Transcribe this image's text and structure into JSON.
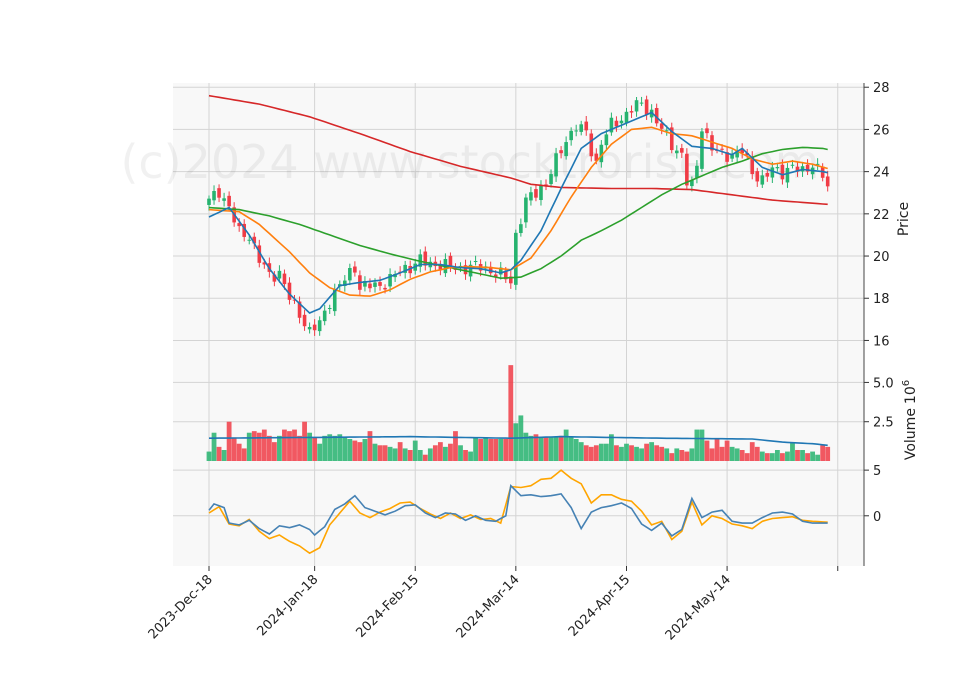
{
  "chart_data": {
    "type": "candlestick",
    "watermark": "(c)2024 www.stocktrorise.com",
    "x_tick_labels": [
      "2023-Dec-18",
      "2024-Jan-18",
      "2024-Feb-15",
      "2024-Mar-14",
      "2024-Apr-15",
      "2024-May-14"
    ],
    "x_tick_indices": [
      0,
      21,
      41,
      61,
      83,
      103
    ],
    "n_candles": 124,
    "price_panel": {
      "ylabel": "Price",
      "ylim": [
        15.5,
        28.2
      ],
      "yticks": [
        16,
        18,
        20,
        22,
        24,
        26,
        28
      ],
      "ytick_labels": [
        "16",
        "18",
        "20",
        "22",
        "24",
        "26",
        "28"
      ],
      "close_anchors": [
        [
          0,
          22.6
        ],
        [
          2,
          23.1
        ],
        [
          4,
          22.3
        ],
        [
          6,
          21.1
        ],
        [
          8,
          21.0
        ],
        [
          10,
          19.8
        ],
        [
          12,
          19.1
        ],
        [
          14,
          19.2
        ],
        [
          16,
          18.0
        ],
        [
          18,
          17.3
        ],
        [
          20,
          16.4
        ],
        [
          22,
          16.8
        ],
        [
          24,
          17.9
        ],
        [
          26,
          18.6
        ],
        [
          28,
          19.2
        ],
        [
          29,
          19.5
        ],
        [
          30,
          18.5
        ],
        [
          32,
          18.6
        ],
        [
          34,
          18.6
        ],
        [
          36,
          18.9
        ],
        [
          38,
          19.3
        ],
        [
          40,
          19.5
        ],
        [
          42,
          19.8
        ],
        [
          44,
          19.6
        ],
        [
          46,
          19.6
        ],
        [
          48,
          19.5
        ],
        [
          50,
          19.4
        ],
        [
          52,
          19.5
        ],
        [
          54,
          19.5
        ],
        [
          56,
          19.3
        ],
        [
          58,
          19.1
        ],
        [
          60,
          18.8
        ],
        [
          61,
          21.0
        ],
        [
          63,
          22.6
        ],
        [
          65,
          23.0
        ],
        [
          67,
          23.5
        ],
        [
          69,
          24.5
        ],
        [
          71,
          25.5
        ],
        [
          73,
          26.2
        ],
        [
          75,
          25.8
        ],
        [
          76,
          25.0
        ],
        [
          77,
          24.4
        ],
        [
          78,
          25.4
        ],
        [
          80,
          26.2
        ],
        [
          82,
          26.5
        ],
        [
          84,
          27.0
        ],
        [
          86,
          27.2
        ],
        [
          88,
          26.8
        ],
        [
          90,
          26.0
        ],
        [
          92,
          25.3
        ],
        [
          94,
          24.8
        ],
        [
          95,
          23.5
        ],
        [
          96,
          23.3
        ],
        [
          97,
          24.3
        ],
        [
          98,
          26.2
        ],
        [
          100,
          25.1
        ],
        [
          102,
          24.8
        ],
        [
          104,
          24.8
        ],
        [
          106,
          25.0
        ],
        [
          108,
          24.0
        ],
        [
          110,
          23.6
        ],
        [
          112,
          24.1
        ],
        [
          114,
          24.0
        ],
        [
          116,
          24.2
        ],
        [
          118,
          24.0
        ],
        [
          120,
          24.4
        ],
        [
          122,
          23.8
        ],
        [
          123,
          23.2
        ]
      ],
      "ma_short_anchors": [
        [
          0,
          21.85
        ],
        [
          4,
          22.3
        ],
        [
          8,
          21.0
        ],
        [
          12,
          19.4
        ],
        [
          16,
          18.2
        ],
        [
          20,
          17.3
        ],
        [
          22,
          17.5
        ],
        [
          26,
          18.6
        ],
        [
          30,
          18.75
        ],
        [
          34,
          18.85
        ],
        [
          38,
          19.2
        ],
        [
          42,
          19.6
        ],
        [
          46,
          19.6
        ],
        [
          50,
          19.45
        ],
        [
          54,
          19.4
        ],
        [
          58,
          19.2
        ],
        [
          60,
          19.35
        ],
        [
          62,
          19.8
        ],
        [
          66,
          21.2
        ],
        [
          70,
          23.2
        ],
        [
          74,
          25.1
        ],
        [
          78,
          25.8
        ],
        [
          82,
          26.2
        ],
        [
          86,
          26.6
        ],
        [
          88,
          26.8
        ],
        [
          92,
          25.9
        ],
        [
          96,
          25.2
        ],
        [
          100,
          25.1
        ],
        [
          104,
          24.8
        ],
        [
          106,
          25.1
        ],
        [
          110,
          24.2
        ],
        [
          114,
          23.85
        ],
        [
          118,
          24.1
        ],
        [
          122,
          24.0
        ],
        [
          123,
          23.95
        ]
      ],
      "ma_mid_anchors": [
        [
          0,
          22.2
        ],
        [
          6,
          22.1
        ],
        [
          10,
          21.5
        ],
        [
          16,
          20.2
        ],
        [
          20,
          19.2
        ],
        [
          24,
          18.5
        ],
        [
          28,
          18.15
        ],
        [
          32,
          18.1
        ],
        [
          36,
          18.4
        ],
        [
          40,
          18.9
        ],
        [
          44,
          19.25
        ],
        [
          48,
          19.45
        ],
        [
          52,
          19.5
        ],
        [
          56,
          19.45
        ],
        [
          60,
          19.35
        ],
        [
          64,
          19.9
        ],
        [
          68,
          21.2
        ],
        [
          72,
          22.8
        ],
        [
          76,
          24.2
        ],
        [
          80,
          25.3
        ],
        [
          84,
          26.0
        ],
        [
          88,
          26.1
        ],
        [
          92,
          25.8
        ],
        [
          96,
          25.7
        ],
        [
          100,
          25.4
        ],
        [
          104,
          25.1
        ],
        [
          108,
          24.6
        ],
        [
          112,
          24.35
        ],
        [
          116,
          24.5
        ],
        [
          120,
          24.35
        ],
        [
          123,
          24.15
        ]
      ],
      "ma_long_anchors": [
        [
          0,
          22.3
        ],
        [
          6,
          22.2
        ],
        [
          12,
          21.9
        ],
        [
          18,
          21.5
        ],
        [
          24,
          21.0
        ],
        [
          30,
          20.5
        ],
        [
          36,
          20.1
        ],
        [
          42,
          19.75
        ],
        [
          48,
          19.45
        ],
        [
          54,
          19.15
        ],
        [
          58,
          18.95
        ],
        [
          62,
          19.0
        ],
        [
          66,
          19.4
        ],
        [
          70,
          20.0
        ],
        [
          74,
          20.75
        ],
        [
          78,
          21.2
        ],
        [
          82,
          21.7
        ],
        [
          86,
          22.3
        ],
        [
          90,
          22.9
        ],
        [
          94,
          23.4
        ],
        [
          98,
          23.8
        ],
        [
          102,
          24.2
        ],
        [
          106,
          24.5
        ],
        [
          110,
          24.85
        ],
        [
          114,
          25.05
        ],
        [
          118,
          25.15
        ],
        [
          122,
          25.1
        ],
        [
          123,
          25.05
        ]
      ],
      "ma_200_anchors": [
        [
          0,
          27.6
        ],
        [
          10,
          27.2
        ],
        [
          20,
          26.6
        ],
        [
          30,
          25.8
        ],
        [
          40,
          24.95
        ],
        [
          50,
          24.25
        ],
        [
          60,
          23.7
        ],
        [
          64,
          23.4
        ],
        [
          70,
          23.25
        ],
        [
          80,
          23.2
        ],
        [
          88,
          23.2
        ],
        [
          96,
          23.15
        ],
        [
          104,
          22.9
        ],
        [
          112,
          22.65
        ],
        [
          123,
          22.45
        ]
      ]
    },
    "volume_panel": {
      "ylabel": "Volume  10^6",
      "ylabel_text": "Volume",
      "ylabel_exp": "6",
      "ylim": [
        0,
        7.0
      ],
      "yticks": [
        2.5,
        5.0
      ],
      "ytick_labels": [
        "2.5",
        "5.0"
      ],
      "values": [
        0.6,
        1.8,
        0.9,
        0.7,
        2.5,
        1.5,
        1.1,
        0.8,
        1.8,
        1.9,
        1.8,
        2.0,
        1.6,
        1.2,
        1.6,
        2.0,
        1.9,
        2.0,
        1.6,
        2.5,
        1.8,
        1.5,
        1.1,
        1.6,
        1.7,
        1.6,
        1.7,
        1.5,
        1.4,
        1.3,
        1.2,
        1.4,
        1.9,
        1.1,
        1.0,
        1.0,
        0.9,
        0.8,
        1.2,
        0.8,
        0.7,
        1.3,
        0.7,
        0.4,
        0.8,
        1.0,
        1.2,
        0.9,
        1.1,
        1.9,
        1.0,
        0.7,
        0.6,
        1.5,
        1.4,
        1.5,
        1.4,
        1.4,
        1.4,
        1.4,
        6.1,
        2.4,
        2.9,
        1.8,
        1.6,
        1.7,
        1.5,
        1.5,
        1.5,
        1.5,
        1.6,
        2.0,
        1.5,
        1.4,
        1.2,
        1.0,
        0.9,
        1.0,
        1.1,
        1.1,
        1.7,
        1.0,
        0.9,
        1.1,
        1.0,
        0.9,
        0.8,
        1.1,
        1.2,
        1.0,
        0.9,
        0.8,
        0.5,
        0.8,
        0.7,
        0.6,
        0.8,
        2.0,
        2.0,
        1.3,
        0.8,
        1.4,
        0.9,
        1.3,
        0.9,
        0.8,
        0.7,
        0.5,
        1.2,
        0.9,
        0.6,
        0.5,
        0.5,
        0.7,
        0.5,
        0.6,
        1.2,
        0.7,
        0.7,
        0.5,
        0.6,
        0.4,
        1.0,
        0.9
      ],
      "avg_anchors": [
        [
          0,
          1.45
        ],
        [
          20,
          1.5
        ],
        [
          40,
          1.55
        ],
        [
          60,
          1.45
        ],
        [
          70,
          1.55
        ],
        [
          90,
          1.45
        ],
        [
          108,
          1.4
        ],
        [
          114,
          1.2
        ],
        [
          120,
          1.1
        ],
        [
          123,
          1.0
        ]
      ]
    },
    "oscillator_panel": {
      "ylim": [
        -5.5,
        6.0
      ],
      "yticks": [
        0,
        5
      ],
      "ytick_labels": [
        "0",
        "5"
      ],
      "line1_anchors": [
        [
          0,
          0.6
        ],
        [
          1,
          1.3
        ],
        [
          3,
          0.9
        ],
        [
          4,
          -0.8
        ],
        [
          6,
          -1.0
        ],
        [
          8,
          -0.5
        ],
        [
          10,
          -1.4
        ],
        [
          12,
          -2.0
        ],
        [
          14,
          -1.1
        ],
        [
          16,
          -1.3
        ],
        [
          18,
          -1.0
        ],
        [
          20,
          -1.5
        ],
        [
          21,
          -2.1
        ],
        [
          23,
          -1.2
        ],
        [
          25,
          0.7
        ],
        [
          27,
          1.3
        ],
        [
          29,
          2.2
        ],
        [
          31,
          0.9
        ],
        [
          33,
          0.5
        ],
        [
          35,
          0.1
        ],
        [
          37,
          0.5
        ],
        [
          39,
          1.1
        ],
        [
          41,
          1.2
        ],
        [
          43,
          0.3
        ],
        [
          45,
          -0.2
        ],
        [
          47,
          0.3
        ],
        [
          49,
          0.2
        ],
        [
          51,
          -0.5
        ],
        [
          53,
          0.0
        ],
        [
          55,
          -0.5
        ],
        [
          57,
          -0.6
        ],
        [
          59,
          0.0
        ],
        [
          60,
          3.3
        ],
        [
          62,
          2.2
        ],
        [
          64,
          2.3
        ],
        [
          66,
          2.1
        ],
        [
          68,
          2.2
        ],
        [
          70,
          2.4
        ],
        [
          72,
          0.9
        ],
        [
          74,
          -1.4
        ],
        [
          76,
          0.4
        ],
        [
          78,
          0.9
        ],
        [
          80,
          1.1
        ],
        [
          82,
          1.4
        ],
        [
          84,
          0.8
        ],
        [
          86,
          -0.9
        ],
        [
          88,
          -1.6
        ],
        [
          90,
          -0.8
        ],
        [
          92,
          -2.2
        ],
        [
          94,
          -1.5
        ],
        [
          96,
          1.9
        ],
        [
          98,
          -0.2
        ],
        [
          100,
          0.4
        ],
        [
          102,
          0.6
        ],
        [
          104,
          -0.6
        ],
        [
          106,
          -0.8
        ],
        [
          108,
          -0.8
        ],
        [
          110,
          -0.2
        ],
        [
          112,
          0.3
        ],
        [
          114,
          0.4
        ],
        [
          116,
          0.2
        ],
        [
          118,
          -0.6
        ],
        [
          120,
          -0.8
        ],
        [
          123,
          -0.8
        ]
      ],
      "line2_anchors": [
        [
          0,
          0.3
        ],
        [
          2,
          1.0
        ],
        [
          4,
          -0.9
        ],
        [
          6,
          -1.1
        ],
        [
          8,
          -0.4
        ],
        [
          10,
          -1.7
        ],
        [
          12,
          -2.5
        ],
        [
          14,
          -2.1
        ],
        [
          16,
          -2.8
        ],
        [
          18,
          -3.3
        ],
        [
          20,
          -4.1
        ],
        [
          22,
          -3.5
        ],
        [
          24,
          -1.0
        ],
        [
          26,
          0.3
        ],
        [
          28,
          1.6
        ],
        [
          30,
          0.3
        ],
        [
          32,
          -0.2
        ],
        [
          34,
          0.4
        ],
        [
          36,
          0.8
        ],
        [
          38,
          1.4
        ],
        [
          40,
          1.5
        ],
        [
          42,
          0.8
        ],
        [
          44,
          0.2
        ],
        [
          46,
          -0.3
        ],
        [
          48,
          0.3
        ],
        [
          50,
          -0.3
        ],
        [
          52,
          0.1
        ],
        [
          54,
          -0.4
        ],
        [
          56,
          -0.3
        ],
        [
          58,
          -0.8
        ],
        [
          60,
          3.2
        ],
        [
          62,
          3.1
        ],
        [
          64,
          3.3
        ],
        [
          66,
          4.0
        ],
        [
          68,
          4.1
        ],
        [
          70,
          5.0
        ],
        [
          72,
          4.1
        ],
        [
          74,
          3.5
        ],
        [
          76,
          1.4
        ],
        [
          78,
          2.3
        ],
        [
          80,
          2.3
        ],
        [
          82,
          1.8
        ],
        [
          84,
          1.6
        ],
        [
          86,
          0.5
        ],
        [
          88,
          -1.0
        ],
        [
          90,
          -0.6
        ],
        [
          92,
          -2.6
        ],
        [
          94,
          -1.7
        ],
        [
          96,
          1.5
        ],
        [
          98,
          -1.0
        ],
        [
          100,
          0.0
        ],
        [
          102,
          -0.3
        ],
        [
          104,
          -0.9
        ],
        [
          106,
          -1.1
        ],
        [
          108,
          -1.4
        ],
        [
          110,
          -0.6
        ],
        [
          112,
          -0.3
        ],
        [
          114,
          -0.2
        ],
        [
          116,
          -0.1
        ],
        [
          118,
          -0.5
        ],
        [
          120,
          -0.6
        ],
        [
          123,
          -0.7
        ]
      ]
    },
    "colors": {
      "up": "#26b36f",
      "down": "#f03c46",
      "ma_short": "#1f77b4",
      "ma_mid": "#ff7f0e",
      "ma_long": "#2ca02c",
      "ma_200": "#d62728",
      "volume_avg": "#1f77b4",
      "osc_line1": "#4682b4",
      "osc_line2": "#ffa500",
      "panel_bg": "#f8f8f8",
      "grid": "#d4d4d4"
    }
  }
}
